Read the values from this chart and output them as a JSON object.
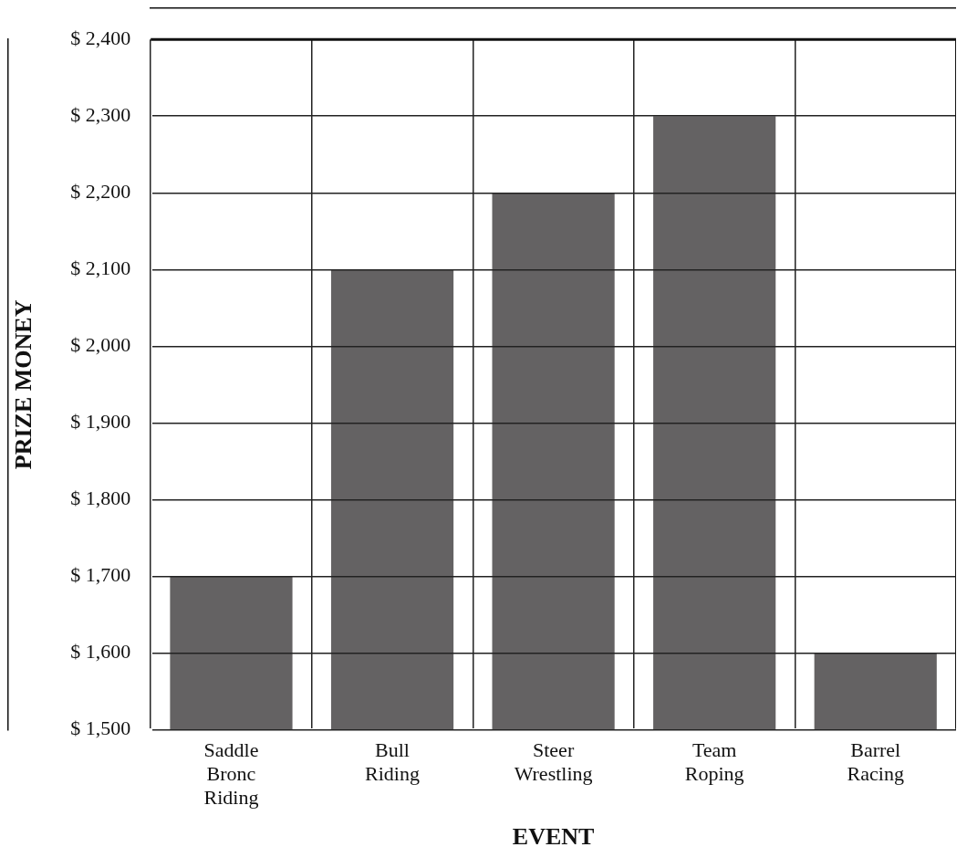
{
  "chart_data": {
    "type": "bar",
    "xlabel": "EVENT",
    "ylabel": "PRIZE MONEY",
    "categories": [
      "Saddle Bronc Riding",
      "Bull Riding",
      "Steer Wrestling",
      "Team Roping",
      "Barrel Racing"
    ],
    "values": [
      1700,
      2100,
      2200,
      2300,
      1600
    ],
    "color": "#646263",
    "ylim": [
      1500,
      2400
    ],
    "yticks": [
      {
        "value": 1500,
        "label": "$ 1,500"
      },
      {
        "value": 1600,
        "label": "$ 1,600"
      },
      {
        "value": 1700,
        "label": "$ 1,700"
      },
      {
        "value": 1800,
        "label": "$ 1,800"
      },
      {
        "value": 1900,
        "label": "$ 1,900"
      },
      {
        "value": 2000,
        "label": "$ 2,000"
      },
      {
        "value": 2100,
        "label": "$ 2,100"
      },
      {
        "value": 2200,
        "label": "$ 2,200"
      },
      {
        "value": 2300,
        "label": "$ 2,300"
      },
      {
        "value": 2400,
        "label": "$ 2,400"
      }
    ],
    "grid": true
  }
}
